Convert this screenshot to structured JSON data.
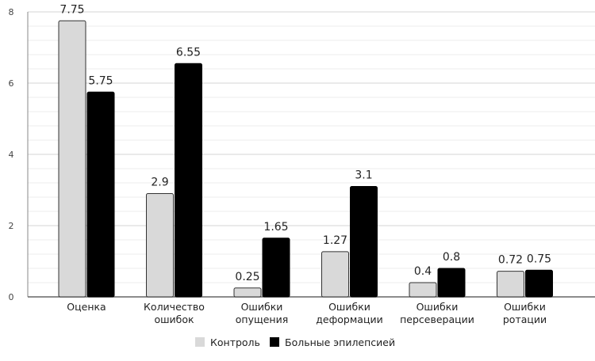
{
  "chart_data": {
    "type": "bar",
    "title": "",
    "xlabel": "",
    "ylabel": "",
    "ylim": [
      0,
      8
    ],
    "yticks": [
      0,
      2,
      4,
      6,
      8
    ],
    "minor_step": 0.4,
    "grid": true,
    "legend_position": "bottom",
    "categories": [
      [
        "Оценка"
      ],
      [
        "Количество",
        "ошибок"
      ],
      [
        "Ошибки",
        "опущения"
      ],
      [
        "Ошибки",
        "деформации"
      ],
      [
        "Ошибки",
        "персеверации"
      ],
      [
        "Ошибки",
        "ротации"
      ]
    ],
    "series": [
      {
        "name": "Контроль",
        "color": "#d9d9d9",
        "values": [
          7.75,
          2.9,
          0.25,
          1.27,
          0.4,
          0.72
        ]
      },
      {
        "name": "Больные эпилепсией",
        "color": "#000000",
        "values": [
          5.75,
          6.55,
          1.65,
          3.1,
          0.8,
          0.75
        ]
      }
    ]
  }
}
